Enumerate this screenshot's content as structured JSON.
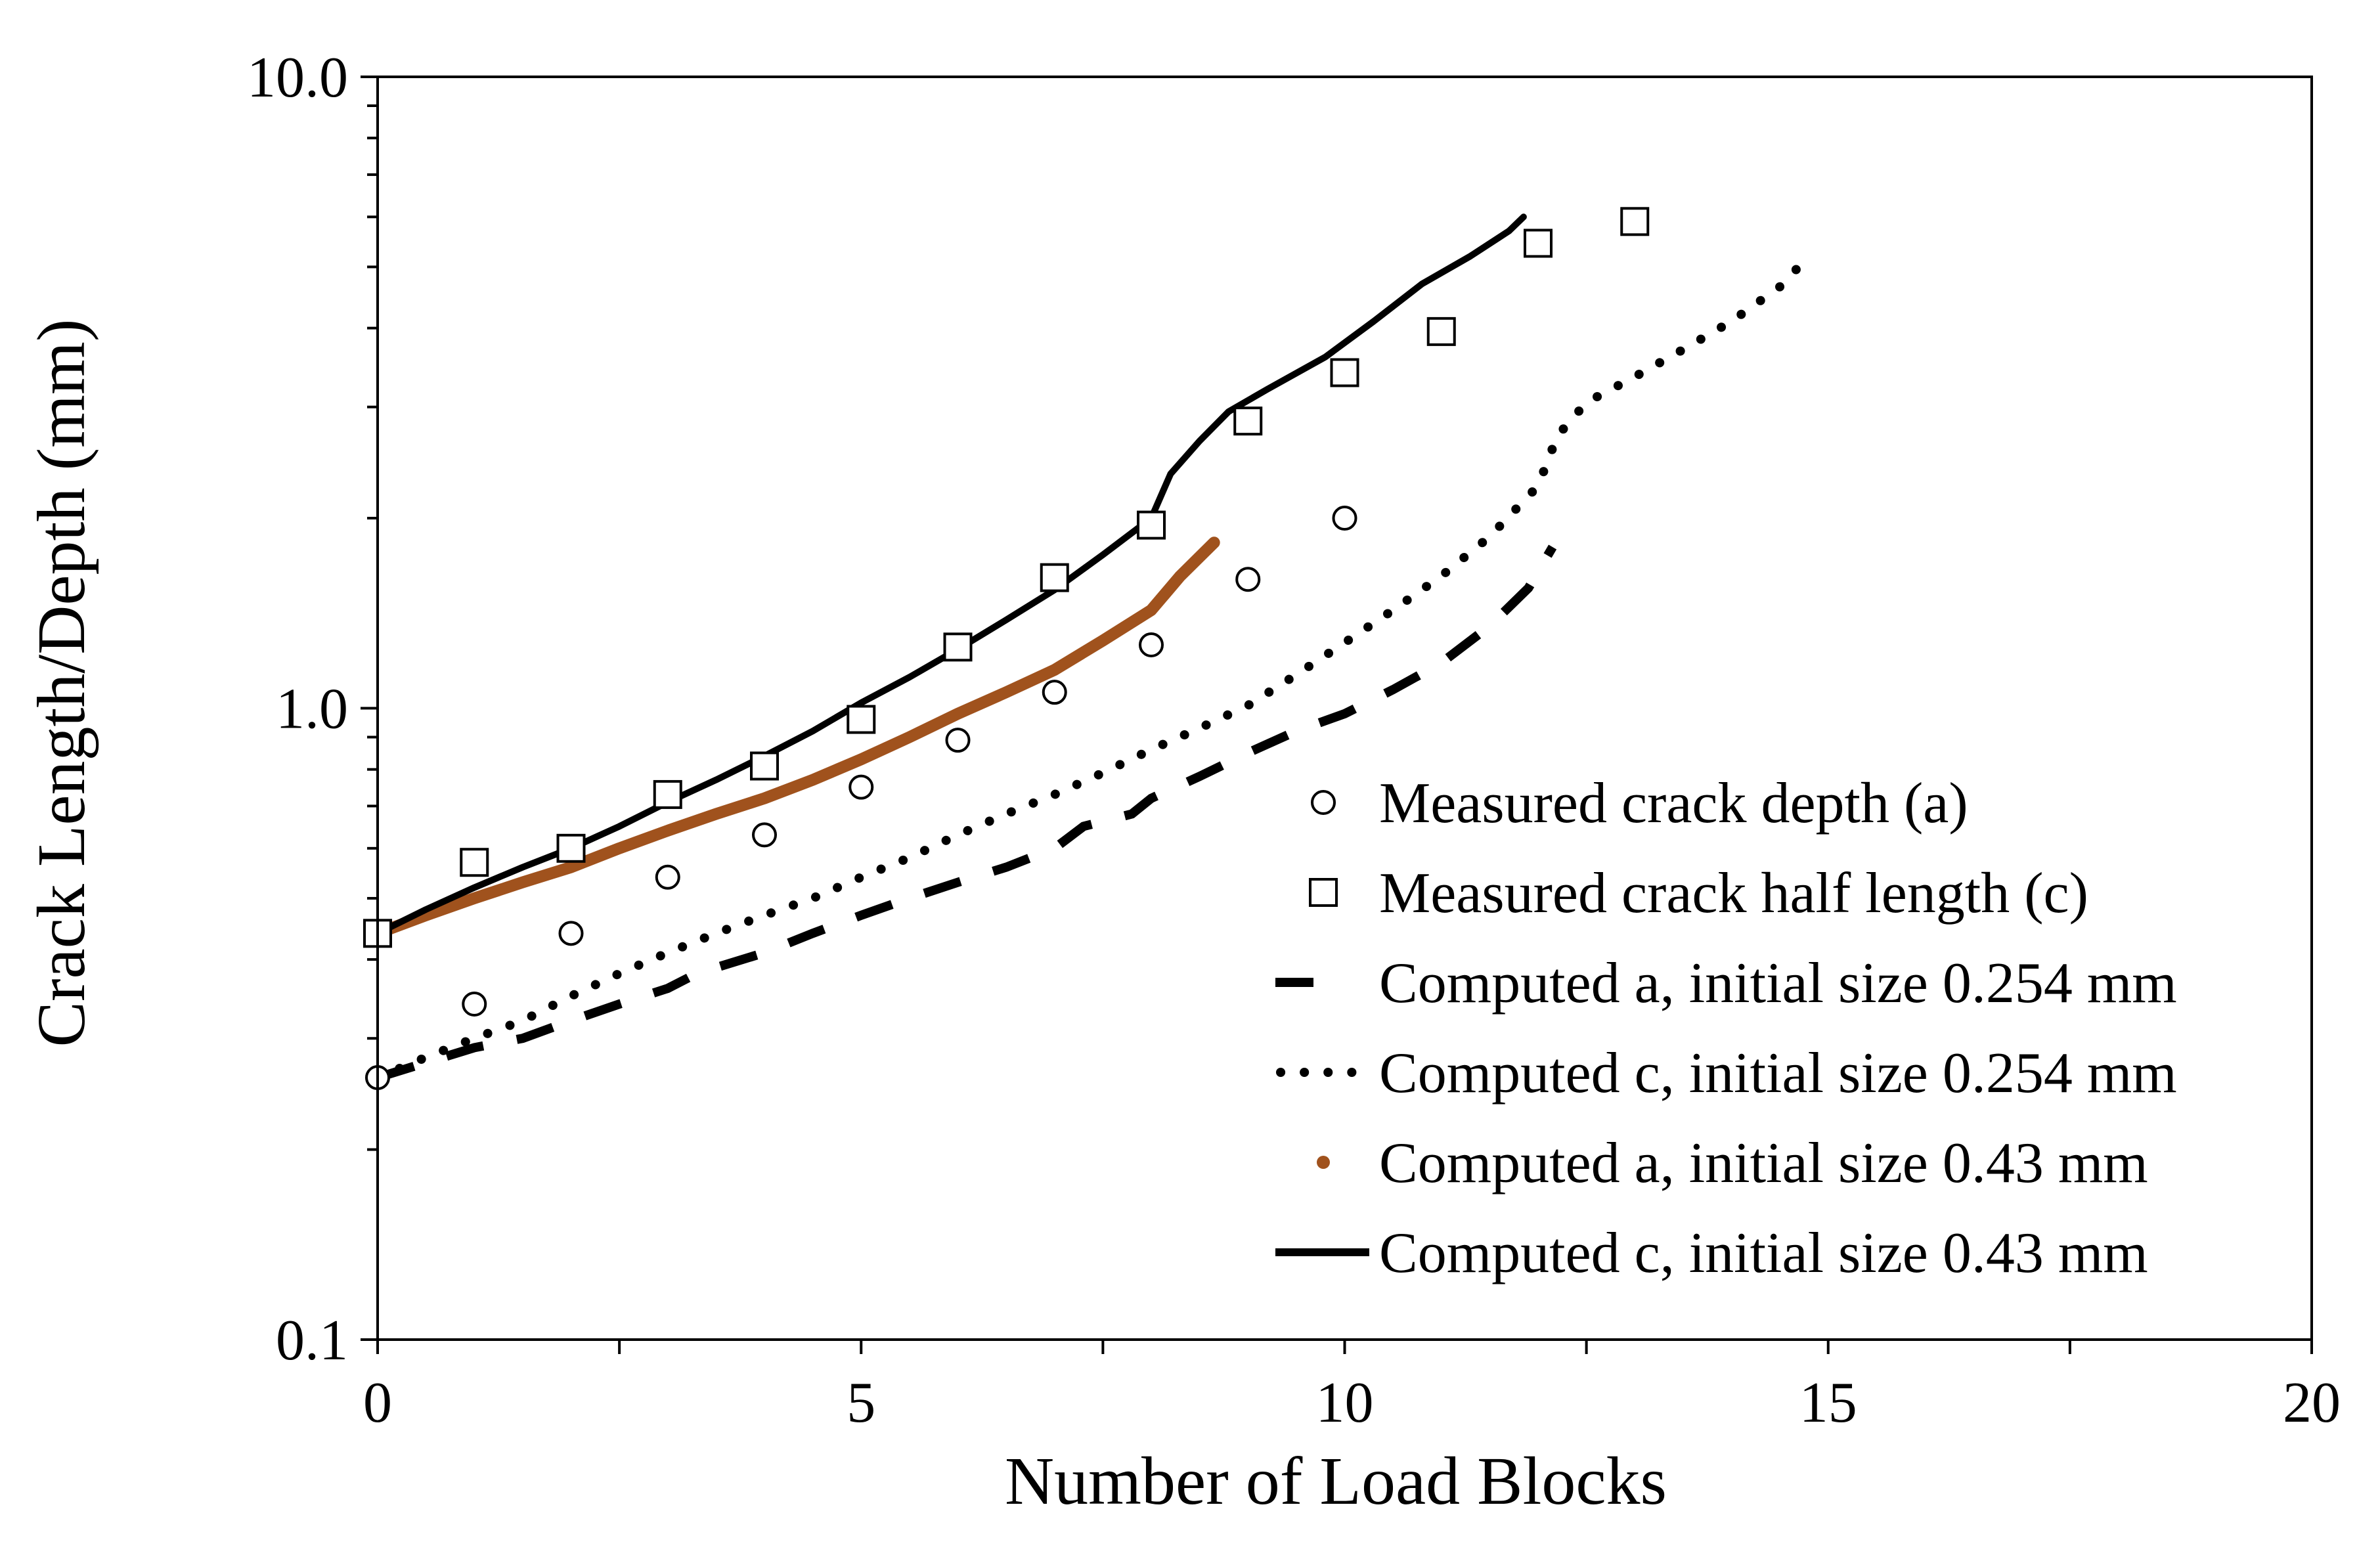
{
  "chart_data": {
    "type": "scatter",
    "title": "",
    "xlabel": "Number of Load Blocks",
    "ylabel": "Crack Length/Depth (mm)",
    "xlim": [
      0,
      20
    ],
    "ylim": [
      0.1,
      10.0
    ],
    "yscale": "log",
    "xticks": [
      0,
      5,
      10,
      15,
      20
    ],
    "xtick_labels": [
      "0",
      "5",
      "10",
      "15",
      "20"
    ],
    "yticks": [
      0.1,
      1.0,
      10.0
    ],
    "ytick_labels": [
      "0.1",
      "1.0",
      "10.0"
    ],
    "grid": false,
    "legend_position": "bottom-right",
    "series": [
      {
        "name": "Measured crack depth (a)",
        "style": "open-circle",
        "color": "#000000",
        "x": [
          0,
          1,
          2,
          3,
          4,
          5,
          6,
          7,
          8,
          9,
          10
        ],
        "y": [
          0.26,
          0.34,
          0.44,
          0.54,
          0.63,
          0.75,
          0.89,
          1.06,
          1.26,
          1.6,
          2.0
        ]
      },
      {
        "name": "Measured crack half length (c)",
        "style": "open-square",
        "color": "#000000",
        "x": [
          0,
          1,
          2,
          3,
          4,
          5,
          6,
          7,
          8,
          9,
          10,
          11,
          12,
          13
        ],
        "y": [
          0.44,
          0.57,
          0.6,
          0.73,
          0.81,
          0.96,
          1.25,
          1.61,
          1.95,
          2.85,
          3.4,
          3.95,
          5.45,
          5.9
        ]
      },
      {
        "name": "Computed a, initial size 0.254 mm",
        "style": "dashed",
        "color": "#000000",
        "x": [
          0,
          1,
          1.5,
          2,
          2.5,
          3,
          3.3,
          4,
          4.5,
          5,
          5.5,
          6,
          6.5,
          7,
          7.3,
          7.8,
          8,
          8.5,
          9,
          9.5,
          10,
          10.5,
          11,
          11.5,
          11.9,
          12.15
        ],
        "y": [
          0.26,
          0.29,
          0.3,
          0.32,
          0.34,
          0.36,
          0.38,
          0.41,
          0.44,
          0.47,
          0.5,
          0.53,
          0.56,
          0.6,
          0.65,
          0.68,
          0.72,
          0.78,
          0.85,
          0.92,
          0.98,
          1.07,
          1.18,
          1.35,
          1.55,
          1.8
        ]
      },
      {
        "name": "Computed c, initial size 0.254 mm",
        "style": "dotted",
        "color": "#000000",
        "x": [
          0,
          0.5,
          1,
          1.5,
          2,
          2.5,
          3,
          3.5,
          4,
          4.5,
          5,
          5.5,
          6,
          6.5,
          7,
          7.5,
          8,
          8.5,
          9,
          9.5,
          10,
          10.5,
          11,
          11.5,
          12,
          12.2,
          12.5,
          13,
          13.5,
          14,
          14.5,
          14.8
        ],
        "y": [
          0.26,
          0.28,
          0.3,
          0.32,
          0.35,
          0.38,
          0.41,
          0.44,
          0.47,
          0.5,
          0.54,
          0.58,
          0.63,
          0.68,
          0.73,
          0.79,
          0.86,
          0.93,
          1.01,
          1.13,
          1.27,
          1.43,
          1.62,
          1.87,
          2.25,
          2.7,
          3.05,
          3.35,
          3.7,
          4.1,
          4.65,
          5.2
        ]
      },
      {
        "name": "Computed a, initial size 0.43 mm",
        "style": "thick-line",
        "color": "#a0521d",
        "x": [
          0,
          0.5,
          1,
          1.5,
          2,
          2.5,
          3,
          3.5,
          4,
          4.5,
          5,
          5.5,
          6,
          6.5,
          7,
          7.5,
          8,
          8.3,
          8.65
        ],
        "y": [
          0.44,
          0.47,
          0.5,
          0.53,
          0.56,
          0.6,
          0.64,
          0.68,
          0.72,
          0.77,
          0.83,
          0.9,
          0.98,
          1.06,
          1.15,
          1.28,
          1.43,
          1.62,
          1.83
        ]
      },
      {
        "name": "Computed c, initial size 0.43 mm",
        "style": "solid",
        "color": "#000000",
        "x": [
          0,
          0.5,
          1,
          1.5,
          2,
          2.5,
          3,
          3.5,
          4,
          4.5,
          5,
          5.5,
          6,
          6.5,
          7,
          7.5,
          8,
          8.2,
          8.5,
          8.8,
          9.2,
          9.8,
          10.3,
          10.8,
          11.3,
          11.7,
          11.85
        ],
        "y": [
          0.44,
          0.48,
          0.52,
          0.56,
          0.6,
          0.65,
          0.71,
          0.77,
          0.84,
          0.92,
          1.02,
          1.12,
          1.24,
          1.38,
          1.54,
          1.75,
          2.0,
          2.35,
          2.65,
          2.95,
          3.2,
          3.6,
          4.1,
          4.7,
          5.2,
          5.7,
          6.0
        ]
      }
    ]
  }
}
